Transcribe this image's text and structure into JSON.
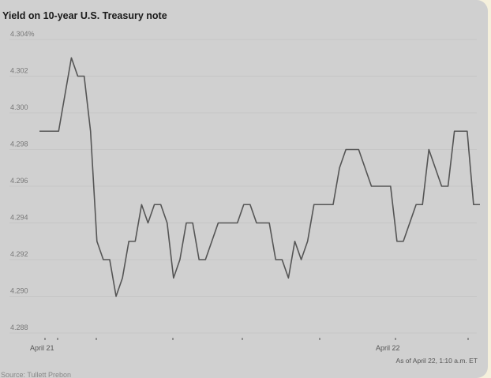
{
  "chart_data": {
    "type": "line",
    "title": "Yield on 10-year U.S. Treasury note",
    "y_ticks": [
      "4.304%",
      "4.302",
      "4.300",
      "4.298",
      "4.296",
      "4.294",
      "4.292",
      "4.290",
      "4.288"
    ],
    "y_tick_values": [
      4.304,
      4.302,
      4.3,
      4.298,
      4.296,
      4.294,
      4.292,
      4.29,
      4.288
    ],
    "ylim": [
      4.288,
      4.304
    ],
    "x_labels": [
      "April 21",
      "April 22"
    ],
    "note": "As of April 22, 1:10 a.m. ET",
    "source": "Source: Tullett Prebon",
    "grid": true,
    "series": [
      {
        "values": [
          4.299,
          4.299,
          4.299,
          4.299,
          4.301,
          4.303,
          4.302,
          4.302,
          4.299,
          4.293,
          4.292,
          4.292,
          4.29,
          4.291,
          4.293,
          4.293,
          4.295,
          4.294,
          4.295,
          4.295,
          4.294,
          4.291,
          4.292,
          4.294,
          4.294,
          4.292,
          4.292,
          4.293,
          4.294,
          4.294,
          4.294,
          4.294,
          4.295,
          4.295,
          4.294,
          4.294,
          4.294,
          4.292,
          4.292,
          4.291,
          4.293,
          4.292,
          4.293,
          4.295,
          4.295,
          4.295,
          4.295,
          4.297,
          4.298,
          4.298,
          4.298,
          4.297,
          4.296,
          4.296,
          4.296,
          4.296,
          4.293,
          4.293,
          4.294,
          4.295,
          4.295,
          4.298,
          4.297,
          4.296,
          4.296,
          4.299,
          4.299,
          4.299,
          4.295,
          4.295
        ]
      }
    ]
  }
}
